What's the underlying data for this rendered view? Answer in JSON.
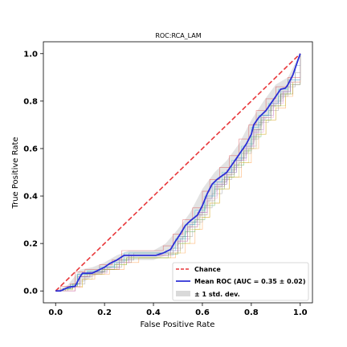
{
  "chart_data": {
    "type": "line",
    "title": "ROC:RCA_LAM",
    "xlabel": "False Positive Rate",
    "ylabel": "True Positive Rate",
    "xlim": [
      -0.05,
      1.05
    ],
    "ylim": [
      -0.05,
      1.05
    ],
    "xticks": [
      "0.0",
      "0.2",
      "0.4",
      "0.6",
      "0.8",
      "1.0"
    ],
    "yticks": [
      "0.0",
      "0.2",
      "0.4",
      "0.6",
      "0.8",
      "1.0"
    ],
    "grid": false,
    "legend_position": "lower-right",
    "legend": [
      {
        "label": "Chance",
        "style": "dashed-line",
        "color": "#e8373a"
      },
      {
        "label": "Mean ROC (AUC = 0.35 ± 0.02)",
        "style": "line",
        "color": "#2d2fd6"
      },
      {
        "label": "± 1 std. dev.",
        "style": "band",
        "color": "#d9d9d9"
      }
    ],
    "series": [
      {
        "name": "Chance",
        "color": "#e8373a",
        "x": [
          0,
          1
        ],
        "y": [
          0,
          1
        ]
      },
      {
        "name": "Mean ROC (AUC = 0.35 ± 0.02)",
        "color": "#2d2fd6",
        "x": [
          0.0,
          0.02,
          0.05,
          0.08,
          0.09,
          0.1,
          0.11,
          0.12,
          0.15,
          0.17,
          0.2,
          0.22,
          0.25,
          0.28,
          0.3,
          0.33,
          0.37,
          0.41,
          0.44,
          0.47,
          0.49,
          0.51,
          0.53,
          0.55,
          0.58,
          0.6,
          0.62,
          0.64,
          0.66,
          0.7,
          0.72,
          0.74,
          0.76,
          0.78,
          0.8,
          0.81,
          0.83,
          0.86,
          0.88,
          0.9,
          0.92,
          0.94,
          0.95,
          0.97,
          0.99,
          1.0
        ],
        "y": [
          0.0,
          0.0,
          0.015,
          0.02,
          0.04,
          0.06,
          0.075,
          0.075,
          0.075,
          0.085,
          0.1,
          0.115,
          0.13,
          0.15,
          0.15,
          0.15,
          0.15,
          0.15,
          0.16,
          0.175,
          0.21,
          0.24,
          0.275,
          0.295,
          0.32,
          0.36,
          0.41,
          0.45,
          0.47,
          0.5,
          0.53,
          0.56,
          0.59,
          0.62,
          0.66,
          0.7,
          0.73,
          0.76,
          0.79,
          0.82,
          0.85,
          0.855,
          0.87,
          0.91,
          0.97,
          1.0
        ]
      }
    ],
    "std_band": {
      "color": "#d9d9d9",
      "x": [
        0.0,
        0.05,
        0.1,
        0.15,
        0.2,
        0.25,
        0.3,
        0.35,
        0.4,
        0.45,
        0.5,
        0.55,
        0.6,
        0.65,
        0.7,
        0.75,
        0.8,
        0.85,
        0.9,
        0.95,
        1.0
      ],
      "upper": [
        0.0,
        0.025,
        0.09,
        0.1,
        0.12,
        0.15,
        0.17,
        0.17,
        0.17,
        0.2,
        0.26,
        0.33,
        0.43,
        0.5,
        0.55,
        0.62,
        0.72,
        0.8,
        0.87,
        0.9,
        1.0
      ],
      "lower": [
        0.0,
        0.005,
        0.03,
        0.06,
        0.08,
        0.11,
        0.13,
        0.13,
        0.13,
        0.15,
        0.19,
        0.26,
        0.32,
        0.41,
        0.46,
        0.53,
        0.6,
        0.71,
        0.78,
        0.83,
        1.0
      ]
    },
    "fold_curves": [
      {
        "color": "#1f77b4",
        "x": [
          0,
          0.04,
          0.06,
          0.09,
          0.13,
          0.2,
          0.26,
          0.3,
          0.42,
          0.47,
          0.5,
          0.54,
          0.58,
          0.61,
          0.64,
          0.7,
          0.74,
          0.78,
          0.81,
          0.84,
          0.88,
          0.92,
          0.96,
          0.98,
          1.0
        ],
        "y": [
          0,
          0.01,
          0.02,
          0.07,
          0.08,
          0.1,
          0.13,
          0.16,
          0.16,
          0.18,
          0.23,
          0.29,
          0.33,
          0.39,
          0.45,
          0.5,
          0.56,
          0.62,
          0.7,
          0.74,
          0.79,
          0.84,
          0.88,
          0.95,
          1.0
        ]
      },
      {
        "color": "#ff7f0e",
        "x": [
          0,
          0.05,
          0.08,
          0.11,
          0.16,
          0.22,
          0.28,
          0.34,
          0.45,
          0.49,
          0.53,
          0.57,
          0.6,
          0.63,
          0.67,
          0.71,
          0.76,
          0.8,
          0.83,
          0.86,
          0.9,
          0.94,
          0.97,
          1.0
        ],
        "y": [
          0,
          0.0,
          0.015,
          0.05,
          0.07,
          0.09,
          0.12,
          0.14,
          0.14,
          0.16,
          0.2,
          0.26,
          0.31,
          0.37,
          0.43,
          0.48,
          0.54,
          0.6,
          0.66,
          0.72,
          0.77,
          0.82,
          0.88,
          1.0
        ]
      },
      {
        "color": "#2ca02c",
        "x": [
          0,
          0.03,
          0.07,
          0.1,
          0.14,
          0.19,
          0.24,
          0.29,
          0.4,
          0.46,
          0.5,
          0.53,
          0.57,
          0.61,
          0.65,
          0.69,
          0.73,
          0.77,
          0.8,
          0.84,
          0.88,
          0.92,
          0.96,
          1.0
        ],
        "y": [
          0,
          0.01,
          0.03,
          0.06,
          0.075,
          0.09,
          0.11,
          0.14,
          0.14,
          0.155,
          0.2,
          0.25,
          0.3,
          0.36,
          0.43,
          0.48,
          0.53,
          0.59,
          0.65,
          0.72,
          0.78,
          0.83,
          0.87,
          1.0
        ]
      },
      {
        "color": "#d62728",
        "x": [
          0,
          0.02,
          0.06,
          0.08,
          0.12,
          0.18,
          0.23,
          0.27,
          0.38,
          0.44,
          0.48,
          0.52,
          0.56,
          0.6,
          0.63,
          0.67,
          0.71,
          0.75,
          0.79,
          0.82,
          0.86,
          0.9,
          0.95,
          1.0
        ],
        "y": [
          0,
          0.02,
          0.03,
          0.08,
          0.09,
          0.11,
          0.13,
          0.17,
          0.17,
          0.19,
          0.24,
          0.3,
          0.35,
          0.42,
          0.47,
          0.52,
          0.57,
          0.64,
          0.7,
          0.76,
          0.81,
          0.86,
          0.9,
          1.0
        ]
      },
      {
        "color": "#9467bd",
        "x": [
          0,
          0.04,
          0.08,
          0.1,
          0.14,
          0.2,
          0.25,
          0.3,
          0.43,
          0.48,
          0.51,
          0.55,
          0.59,
          0.62,
          0.66,
          0.7,
          0.74,
          0.78,
          0.82,
          0.85,
          0.89,
          0.93,
          0.96,
          1.0
        ],
        "y": [
          0,
          0.0,
          0.02,
          0.06,
          0.08,
          0.1,
          0.12,
          0.15,
          0.15,
          0.17,
          0.22,
          0.28,
          0.33,
          0.4,
          0.46,
          0.51,
          0.56,
          0.61,
          0.68,
          0.74,
          0.8,
          0.84,
          0.89,
          1.0
        ]
      },
      {
        "color": "#8c564b",
        "x": [
          0,
          0.03,
          0.07,
          0.09,
          0.13,
          0.19,
          0.26,
          0.31,
          0.41,
          0.46,
          0.5,
          0.54,
          0.58,
          0.62,
          0.65,
          0.69,
          0.73,
          0.77,
          0.81,
          0.84,
          0.88,
          0.92,
          0.97,
          1.0
        ],
        "y": [
          0,
          0.01,
          0.02,
          0.06,
          0.07,
          0.09,
          0.12,
          0.15,
          0.15,
          0.16,
          0.21,
          0.27,
          0.32,
          0.38,
          0.44,
          0.49,
          0.55,
          0.6,
          0.68,
          0.73,
          0.78,
          0.83,
          0.87,
          1.0
        ]
      },
      {
        "color": "#7f7f7f",
        "x": [
          0,
          0.05,
          0.08,
          0.12,
          0.16,
          0.21,
          0.27,
          0.32,
          0.44,
          0.48,
          0.52,
          0.56,
          0.6,
          0.64,
          0.68,
          0.72,
          0.76,
          0.8,
          0.83,
          0.87,
          0.91,
          0.95,
          0.98,
          1.0
        ],
        "y": [
          0,
          0.015,
          0.03,
          0.07,
          0.08,
          0.1,
          0.13,
          0.16,
          0.16,
          0.18,
          0.23,
          0.29,
          0.35,
          0.41,
          0.47,
          0.52,
          0.58,
          0.64,
          0.71,
          0.76,
          0.82,
          0.86,
          0.92,
          1.0
        ]
      },
      {
        "color": "#bcbd22",
        "x": [
          0,
          0.04,
          0.07,
          0.11,
          0.15,
          0.2,
          0.25,
          0.29,
          0.42,
          0.47,
          0.51,
          0.55,
          0.59,
          0.63,
          0.67,
          0.71,
          0.75,
          0.79,
          0.82,
          0.86,
          0.9,
          0.94,
          0.97,
          1.0
        ],
        "y": [
          0,
          0.005,
          0.02,
          0.05,
          0.07,
          0.09,
          0.11,
          0.14,
          0.14,
          0.16,
          0.2,
          0.26,
          0.31,
          0.37,
          0.43,
          0.48,
          0.54,
          0.6,
          0.66,
          0.72,
          0.78,
          0.83,
          0.88,
          1.0
        ]
      },
      {
        "color": "#17becf",
        "x": [
          0,
          0.03,
          0.06,
          0.09,
          0.13,
          0.18,
          0.24,
          0.28,
          0.4,
          0.45,
          0.49,
          0.53,
          0.57,
          0.61,
          0.65,
          0.68,
          0.72,
          0.76,
          0.8,
          0.83,
          0.87,
          0.91,
          0.95,
          1.0
        ],
        "y": [
          0,
          0.01,
          0.025,
          0.07,
          0.085,
          0.1,
          0.12,
          0.16,
          0.16,
          0.17,
          0.22,
          0.28,
          0.34,
          0.4,
          0.46,
          0.5,
          0.55,
          0.61,
          0.69,
          0.74,
          0.79,
          0.85,
          0.89,
          1.0
        ]
      },
      {
        "color": "#e377c2",
        "x": [
          0,
          0.04,
          0.08,
          0.1,
          0.15,
          0.21,
          0.26,
          0.3,
          0.43,
          0.47,
          0.5,
          0.54,
          0.58,
          0.62,
          0.66,
          0.7,
          0.74,
          0.78,
          0.81,
          0.85,
          0.89,
          0.93,
          0.96,
          1.0
        ],
        "y": [
          0,
          0.0,
          0.015,
          0.06,
          0.075,
          0.095,
          0.12,
          0.15,
          0.15,
          0.17,
          0.21,
          0.27,
          0.33,
          0.39,
          0.45,
          0.5,
          0.55,
          0.61,
          0.67,
          0.73,
          0.79,
          0.84,
          0.88,
          1.0
        ]
      }
    ]
  }
}
